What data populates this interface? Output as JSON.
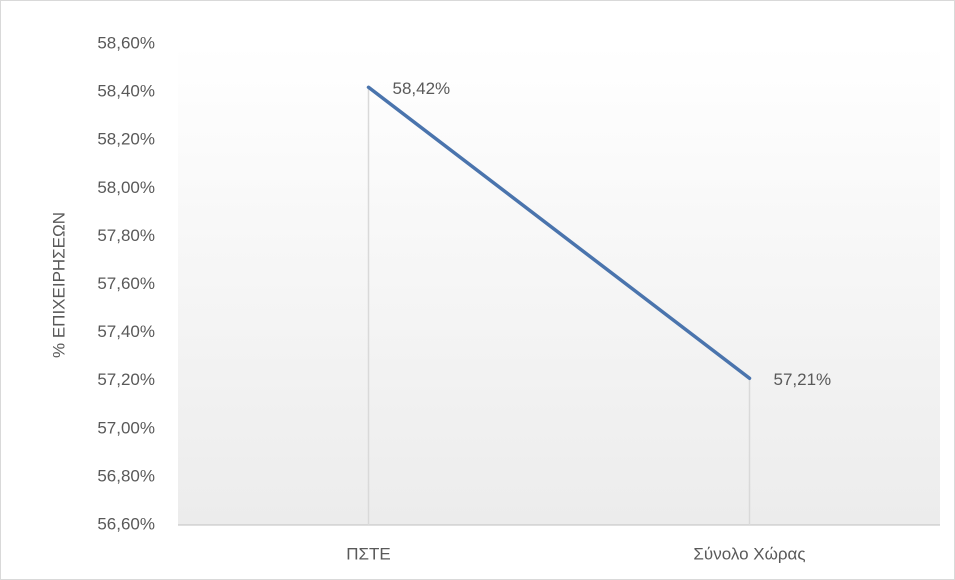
{
  "chart_data": {
    "type": "line",
    "y_label": "% ΕΠΙΧΕΙΡΗΣΕΩΝ",
    "categories": [
      "ΠΣΤΕ",
      "Σύνολο Χώρας"
    ],
    "values": [
      58.42,
      57.21
    ],
    "value_labels": [
      "58,42%",
      "57,21%"
    ],
    "color": "#4a74ad",
    "drop_lines": true,
    "ylim": [
      56.6,
      58.6
    ],
    "yticks": [
      {
        "value": 56.6,
        "label": "56,60%"
      },
      {
        "value": 56.8,
        "label": "56,80%"
      },
      {
        "value": 57.0,
        "label": "57,00%"
      },
      {
        "value": 57.2,
        "label": "57,20%"
      },
      {
        "value": 57.4,
        "label": "57,40%"
      },
      {
        "value": 57.6,
        "label": "57,60%"
      },
      {
        "value": 57.8,
        "label": "57,80%"
      },
      {
        "value": 58.0,
        "label": "58,00%"
      },
      {
        "value": 58.2,
        "label": "58,20%"
      },
      {
        "value": 58.4,
        "label": "58,40%"
      },
      {
        "value": 58.6,
        "label": "58,60%"
      }
    ]
  }
}
